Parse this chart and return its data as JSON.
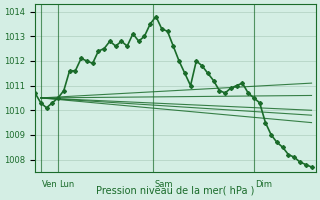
{
  "background_color": "#d4eee4",
  "grid_color": "#b0cfc0",
  "line_color": "#1a6b2a",
  "title_color": "#1a6b2a",
  "xlabel": "Pression niveau de la mer( hPa )",
  "ylim": [
    1007.5,
    1014.3
  ],
  "yticks": [
    1008,
    1009,
    1010,
    1011,
    1012,
    1013,
    1014
  ],
  "day_labels": [
    "Ven",
    "Lun",
    "Sam",
    "Dim"
  ],
  "day_positions": [
    4,
    16,
    82,
    152
  ],
  "xlim": [
    0,
    195
  ],
  "main_line": {
    "x": [
      0,
      4,
      8,
      12,
      16,
      20,
      24,
      28,
      32,
      36,
      40,
      44,
      48,
      52,
      56,
      60,
      64,
      68,
      72,
      76,
      80,
      84,
      88,
      92,
      96,
      100,
      104,
      108,
      112,
      116,
      120,
      124,
      128,
      132,
      136,
      140,
      144,
      148,
      152,
      156,
      160,
      164,
      168,
      172,
      176,
      180,
      184,
      188,
      192
    ],
    "y": [
      1010.7,
      1010.3,
      1010.1,
      1010.3,
      1010.5,
      1010.8,
      1011.6,
      1011.6,
      1012.1,
      1012.0,
      1011.9,
      1012.4,
      1012.5,
      1012.8,
      1012.6,
      1012.8,
      1012.6,
      1013.1,
      1012.8,
      1013.0,
      1013.5,
      1013.8,
      1013.3,
      1013.2,
      1012.6,
      1012.0,
      1011.5,
      1011.0,
      1012.0,
      1011.8,
      1011.5,
      1011.2,
      1010.8,
      1010.7,
      1010.9,
      1011.0,
      1011.1,
      1010.7,
      1010.5,
      1010.3,
      1009.5,
      1009.0,
      1008.7,
      1008.5,
      1008.2,
      1008.1,
      1007.9,
      1007.8,
      1007.7
    ]
  },
  "fan_lines": [
    {
      "x": [
        4,
        192
      ],
      "y": [
        1010.5,
        1011.1
      ]
    },
    {
      "x": [
        4,
        192
      ],
      "y": [
        1010.5,
        1010.6
      ]
    },
    {
      "x": [
        4,
        192
      ],
      "y": [
        1010.5,
        1010.0
      ]
    },
    {
      "x": [
        4,
        192
      ],
      "y": [
        1010.5,
        1009.8
      ]
    },
    {
      "x": [
        4,
        192
      ],
      "y": [
        1010.5,
        1009.5
      ]
    }
  ]
}
